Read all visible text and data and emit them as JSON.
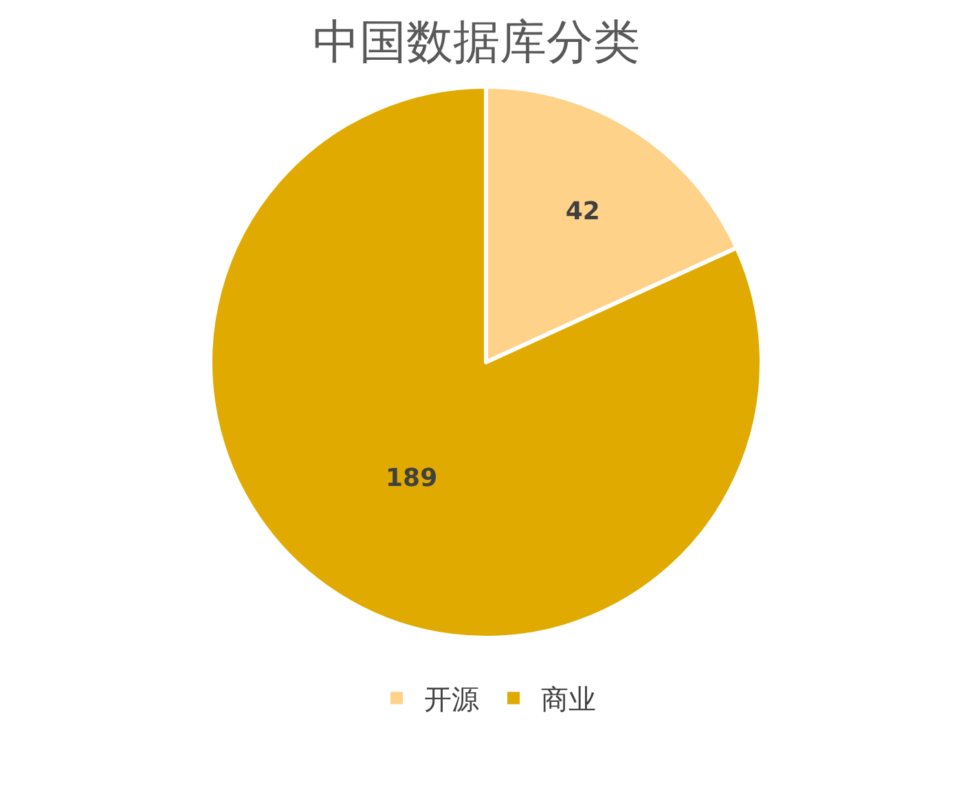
{
  "chart_data": {
    "type": "pie",
    "title": "中国数据库分类",
    "categories": [
      "开源",
      "商业"
    ],
    "values": [
      42,
      189
    ],
    "colors": [
      "#ffd28a",
      "#e0aa00"
    ],
    "data_labels": true,
    "legend": "bottom"
  }
}
